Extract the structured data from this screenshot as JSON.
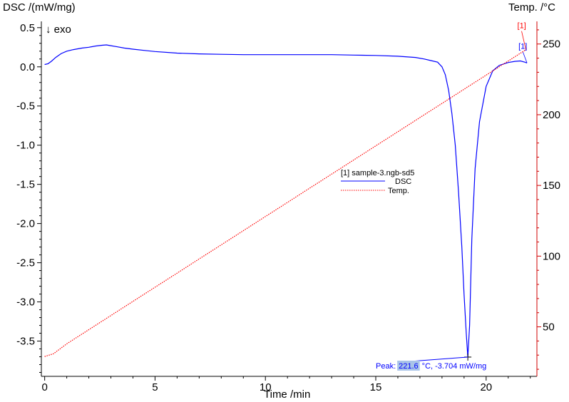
{
  "chart_data": {
    "type": "line",
    "left_axis_title": "DSC /(mW/mg)",
    "right_axis_title": "Temp. /°C",
    "xlabel": "Time /min",
    "exo_label": "↓ exo",
    "xlim": [
      -0.15,
      22.3
    ],
    "ylim_left": [
      -3.95,
      0.58
    ],
    "ylim_right": [
      15,
      266
    ],
    "x_ticks": [
      "0",
      "5",
      "10",
      "15",
      "20"
    ],
    "x_tick_values": [
      0,
      5,
      10,
      15,
      20
    ],
    "y_left_ticks": [
      "0.5",
      "0.0",
      "-0.5",
      "-1.0",
      "-1.5",
      "-2.0",
      "-2.5",
      "-3.0",
      "-3.5"
    ],
    "y_left_tick_values": [
      0.5,
      0.0,
      -0.5,
      -1.0,
      -1.5,
      -2.0,
      -2.5,
      -3.0,
      -3.5
    ],
    "y_right_ticks": [
      "250",
      "200",
      "150",
      "100",
      "50"
    ],
    "y_right_tick_values": [
      250,
      200,
      150,
      100,
      50
    ],
    "legend": {
      "title": "[1] sample-3.ngb-sd5",
      "entries": [
        "DSC",
        "Temp."
      ]
    },
    "series": [
      {
        "name": "DSC",
        "axis": "left",
        "color": "#0000ff",
        "marker": "[1]",
        "x": [
          0.0,
          0.15,
          0.3,
          0.5,
          0.75,
          1.0,
          1.3,
          1.7,
          2.0,
          2.3,
          2.6,
          2.8,
          3.0,
          3.3,
          3.6,
          4.0,
          4.5,
          5.0,
          6.0,
          7.0,
          8.0,
          9.0,
          10.0,
          11.0,
          12.0,
          13.0,
          14.0,
          15.0,
          16.0,
          16.8,
          17.2,
          17.5,
          17.8,
          18.0,
          18.15,
          18.3,
          18.45,
          18.6,
          18.75,
          18.9,
          19.0,
          19.1,
          19.17,
          19.25,
          19.35,
          19.5,
          19.7,
          20.0,
          20.3,
          20.6,
          21.0,
          21.3,
          21.55,
          21.75,
          21.85
        ],
        "y": [
          0.03,
          0.04,
          0.07,
          0.12,
          0.17,
          0.2,
          0.22,
          0.24,
          0.25,
          0.265,
          0.275,
          0.28,
          0.27,
          0.255,
          0.24,
          0.225,
          0.21,
          0.195,
          0.175,
          0.165,
          0.16,
          0.155,
          0.155,
          0.155,
          0.155,
          0.155,
          0.15,
          0.145,
          0.135,
          0.12,
          0.1,
          0.08,
          0.06,
          0.0,
          -0.1,
          -0.3,
          -0.6,
          -1.0,
          -1.6,
          -2.3,
          -2.9,
          -3.4,
          -3.704,
          -3.3,
          -2.2,
          -1.3,
          -0.7,
          -0.25,
          -0.05,
          0.02,
          0.055,
          0.07,
          0.075,
          0.06,
          0.05
        ]
      },
      {
        "name": "Temp.",
        "axis": "right",
        "color": "#ff0000",
        "marker": "[1]",
        "x": [
          0.0,
          0.4,
          1.0,
          2.0,
          3.0,
          4.0,
          5.0,
          6.0,
          7.0,
          8.0,
          9.0,
          10.0,
          11.0,
          12.0,
          13.0,
          14.0,
          15.0,
          16.0,
          17.0,
          18.0,
          19.0,
          20.0,
          21.0,
          21.8
        ],
        "y": [
          29,
          31,
          38,
          48,
          58,
          68,
          78,
          88,
          98,
          108,
          118,
          128,
          138,
          148,
          158,
          168,
          178,
          188,
          198,
          208,
          218,
          228,
          238,
          246
        ]
      }
    ],
    "annotation": {
      "prefix": "Peak:",
      "highlight": "221.6",
      "suffix": "°C, -3.704 mW/mg",
      "x": 19.17,
      "y": -3.704
    }
  }
}
